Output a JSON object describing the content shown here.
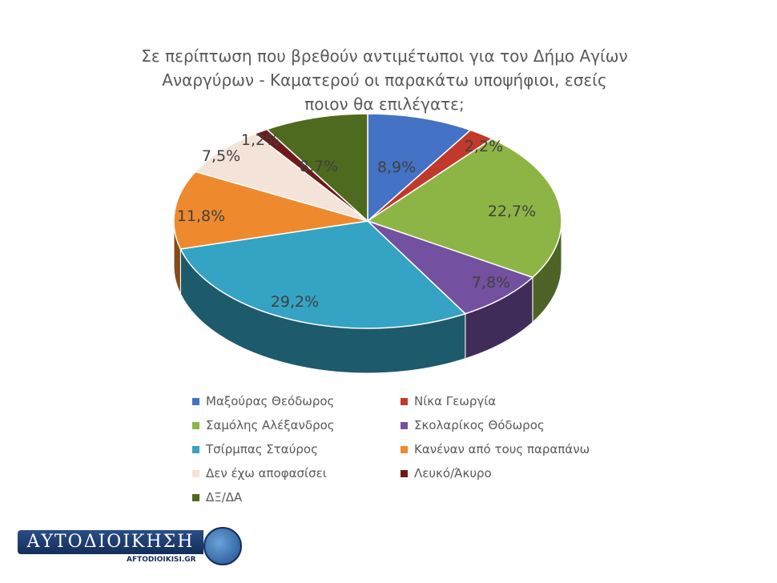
{
  "title_lines": [
    "Σε περίπτωση που βρεθούν αντιμέτωποι για τον Δήμο Αγίων",
    "Αναργύρων - Καματερού οι παρακάτω υποψήφιοι, εσείς",
    "ποιον θα επιλέγατε;"
  ],
  "chart_data": {
    "type": "pie",
    "title": "Σε περίπτωση που βρεθούν αντιμέτωποι για τον Δήμο Αγίων Αναργύρων - Καματερού οι παρακάτω υποψήφιοι, εσείς ποιον θα επιλέγατε;",
    "unit": "%",
    "three_d": true,
    "legend_position": "bottom",
    "slices": [
      {
        "label": "Μαξούρας Θεόδωρος",
        "value": 8.9,
        "display": "8,9%",
        "color": "#4472c4"
      },
      {
        "label": "Νίκα Γεωργία",
        "value": 2.2,
        "display": "2,2%",
        "color": "#c0392b"
      },
      {
        "label": "Σαμόλης Αλέξανδρος",
        "value": 22.7,
        "display": "22,7%",
        "color": "#8db545"
      },
      {
        "label": "Σκολαρίκος Θόδωρος",
        "value": 7.8,
        "display": "7,8%",
        "color": "#7450a0"
      },
      {
        "label": "Τσίρμπας Σταύρος",
        "value": 29.2,
        "display": "29,2%",
        "color": "#35a3c4"
      },
      {
        "label": "Κανέναν από τους παραπάνω",
        "value": 11.8,
        "display": "11,8%",
        "color": "#ee8a2d"
      },
      {
        "label": "Δεν έχω αποφασίσει",
        "value": 7.5,
        "display": "7,5%",
        "color": "#f4e3d8"
      },
      {
        "label": "Λευκό/Άκυρο",
        "value": 1.2,
        "display": "1,2%",
        "color": "#6e1a1a"
      },
      {
        "label": "ΔΞ/ΔΑ",
        "value": 8.7,
        "display": "8,7%",
        "color": "#4e6a1e"
      }
    ]
  },
  "logo": {
    "text": "ΑΥΤΟΔΙΟΙΚΗΣΗ",
    "url_text": "AFTODIOIKISI.GR"
  }
}
